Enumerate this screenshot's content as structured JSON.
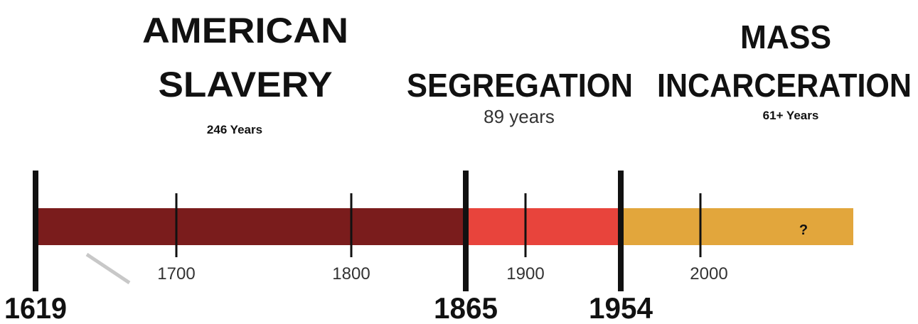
{
  "eras": [
    {
      "title_lines": [
        "AMERICAN",
        "SLAVERY"
      ],
      "duration": "246 Years"
    },
    {
      "title_lines": [
        "SEGREGATION"
      ],
      "duration": "89 years"
    },
    {
      "title_lines": [
        "MASS",
        "INCARCERATION"
      ],
      "duration": "61+ Years"
    }
  ],
  "major_years": [
    "1619",
    "1865",
    "1954"
  ],
  "minor_years": [
    "1700",
    "1800",
    "1900",
    "2000"
  ],
  "marker": "?"
}
